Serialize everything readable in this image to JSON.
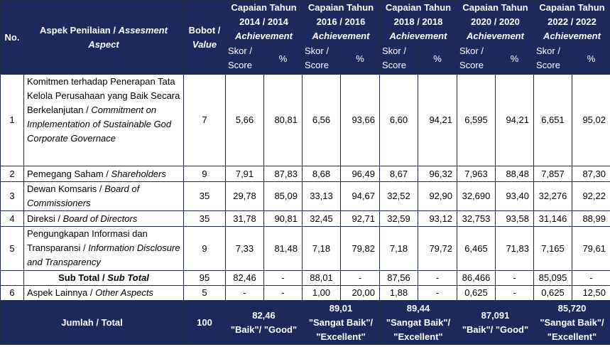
{
  "header": {
    "no": "No.",
    "aspect_id": "Aspek Penilaian / ",
    "aspect_en": "Assesment Aspect",
    "weight_id": "Bobot /",
    "weight_en": "Value",
    "years": [
      {
        "title": "Capaian Tahun 2014 / 2014",
        "en": "Achievement"
      },
      {
        "title": "Capaian Tahun 2016 / 2016",
        "en": "Achievement"
      },
      {
        "title": "Capaian Tahun 2018 / 2018",
        "en": "Achievement"
      },
      {
        "title": "Capaian Tahun 2020 / 2020",
        "en": "Achievement"
      },
      {
        "title": "Capaian Tahun 2022 / 2022",
        "en": "Achievement"
      }
    ],
    "score_label": "Skor / Score",
    "pct_label": "%"
  },
  "rows": [
    {
      "no": "1",
      "text_id": "Komitmen terhadap Penerapan Tata Kelola Perusahaan yang Baik Secara Berkelanjutan / ",
      "text_en": "Commitment on Implementation of Sustainable God Corporate Governace",
      "weight": "7",
      "cells": [
        "5,66",
        "80,81",
        "6,56",
        "93,66",
        "6,60",
        "94,21",
        "6,595",
        "94,21",
        "6,651",
        "95,02"
      ]
    },
    {
      "no": "2",
      "text_id": "Pemegang Saham / ",
      "text_en": "Shareholders",
      "weight": "9",
      "cells": [
        "7,91",
        "87,83",
        "8,68",
        "96,49",
        "8,67",
        "96,32",
        "7,963",
        "88,48",
        "7,857",
        "87,30"
      ]
    },
    {
      "no": "3",
      "text_id": "Dewan Komsaris / ",
      "text_en": "Board of Commissioners",
      "weight": "35",
      "cells": [
        "29,78",
        "85,09",
        "33,13",
        "94,67",
        "32,52",
        "92,90",
        "32,690",
        "93,40",
        "32,276",
        "92,22"
      ]
    },
    {
      "no": "4",
      "text_id": "Direksi / ",
      "text_en": "Board of Directors",
      "weight": "35",
      "cells": [
        "31,78",
        "90,81",
        "32,45",
        "92,71",
        "32,59",
        "93,12",
        "32,753",
        "93,58",
        "31,146",
        "88,99"
      ]
    },
    {
      "no": "5",
      "text_id": "Pengungkapan Informasi dan Transparansi / ",
      "text_en": "Information Disclosure and Transparency",
      "weight": "9",
      "cells": [
        "7,33",
        "81,48",
        "7,18",
        "79,82",
        "7,18",
        "79,72",
        "6,465",
        "71,83",
        "7,165",
        "79,61"
      ]
    }
  ],
  "subtotal": {
    "label_id": "Sub Total / ",
    "label_en": "Sub Total",
    "weight": "95",
    "cells": [
      "82,46",
      "-",
      "88,01",
      "-",
      "87,56",
      "-",
      "86,466",
      "-",
      "85,095",
      "-"
    ]
  },
  "other": {
    "no": "6",
    "text_id": "Aspek Lainnya / ",
    "text_en": "Other Aspects",
    "weight": "5",
    "cells": [
      "-",
      "-",
      "1,00",
      "20,00",
      "1,88",
      "-",
      "0,625",
      "-",
      "0,625",
      "12,50"
    ]
  },
  "total": {
    "label": "Jumlah / Total",
    "weight": "100",
    "years": [
      {
        "value": "82,46",
        "grade": "\"Baik\"/ \"Good\""
      },
      {
        "value": "89,01",
        "grade": "\"Sangat Baik\"/ \"Excellent\""
      },
      {
        "value": "89,44",
        "grade": "\"Sangat Baik\"/ \"Excellent\""
      },
      {
        "value": "87,091",
        "grade": "\"Baik\"/ \"Good\""
      },
      {
        "value": "85,720",
        "grade": "\"Sangat Baik\"/ \"Excellent\""
      }
    ]
  },
  "colors": {
    "header_bg": "#1b2a5c",
    "header_text": "#ffffff",
    "border": "#1f2a44"
  }
}
